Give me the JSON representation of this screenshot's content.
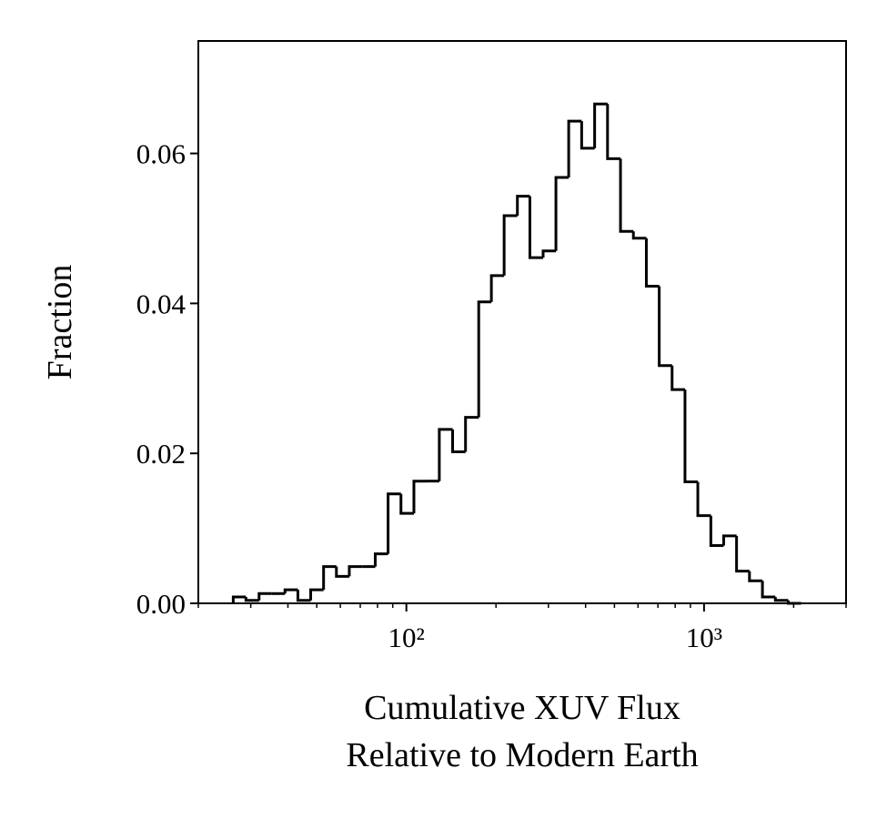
{
  "chart_data": {
    "type": "histogram",
    "histtype": "step",
    "color": "#000000",
    "bins": [
      26.2,
      28.9,
      32.0,
      35.3,
      39.1,
      43.2,
      47.7,
      52.7,
      58.2,
      64.3,
      71.1,
      78.6,
      86.8,
      95.9,
      106,
      117,
      129,
      143,
      158,
      175,
      193,
      213,
      236,
      260,
      288,
      318,
      351,
      388,
      429,
      474,
      524,
      579,
      640,
      707,
      781,
      863,
      953,
      1054,
      1164,
      1286,
      1421,
      1571,
      1736,
      1918,
      2119
    ],
    "counts": [
      0.00085,
      0.0004,
      0.0013,
      0.0013,
      0.0018,
      0.0004,
      0.0018,
      0.0049,
      0.0036,
      0.0049,
      0.0049,
      0.0066,
      0.0146,
      0.012,
      0.0163,
      0.0163,
      0.0232,
      0.0202,
      0.0248,
      0.0402,
      0.0437,
      0.0517,
      0.0543,
      0.0461,
      0.047,
      0.0568,
      0.0643,
      0.0607,
      0.0666,
      0.0593,
      0.0496,
      0.0487,
      0.0423,
      0.0317,
      0.0285,
      0.0162,
      0.0117,
      0.0077,
      0.009,
      0.0043,
      0.003,
      0.00085,
      0.0004,
      0
    ],
    "xlabel": [
      "Cumulative XUV Flux",
      "Relative to Modern Earth"
    ],
    "ylabel": "Fraction",
    "xscale": "log",
    "xlim": [
      20,
      3000
    ],
    "xticks": [
      {
        "value": 100,
        "label": "10²"
      },
      {
        "value": 1000,
        "label": "10³"
      }
    ],
    "xminorticks": [
      20,
      30,
      40,
      50,
      60,
      70,
      80,
      90,
      200,
      300,
      400,
      500,
      600,
      700,
      800,
      900,
      2000,
      3000
    ],
    "ylim": [
      0,
      0.075
    ],
    "yticks": [
      {
        "value": 0,
        "label": "0.00"
      },
      0.02,
      0.04,
      0.06
    ]
  }
}
